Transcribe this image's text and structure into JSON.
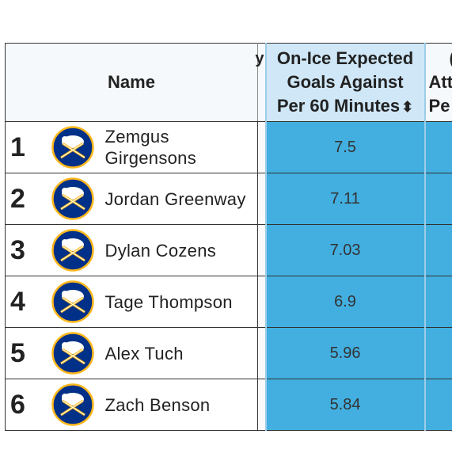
{
  "table": {
    "headers": {
      "name": "Name",
      "gap_partial": "y",
      "metric_line1": "On-Ice Expected",
      "metric_line2": "Goals Against",
      "metric_line3": "Per 60 Minutes",
      "metric_sort_icon": "sort-updown-icon",
      "next_partial_line1": "(",
      "next_partial_line2": "Att",
      "next_partial_line3": "Pe"
    },
    "rows": [
      {
        "rank": "1",
        "name": "Zemgus Girgensons",
        "value": "7.5",
        "logo": "buffalo-sabres-logo"
      },
      {
        "rank": "2",
        "name": "Jordan Greenway",
        "value": "7.11",
        "logo": "buffalo-sabres-logo"
      },
      {
        "rank": "3",
        "name": "Dylan Cozens",
        "value": "7.03",
        "logo": "buffalo-sabres-logo"
      },
      {
        "rank": "4",
        "name": "Tage Thompson",
        "value": "6.9",
        "logo": "buffalo-sabres-logo"
      },
      {
        "rank": "5",
        "name": "Alex Tuch",
        "value": "5.96",
        "logo": "buffalo-sabres-logo"
      },
      {
        "rank": "6",
        "name": "Zach Benson",
        "value": "5.84",
        "logo": "buffalo-sabres-logo"
      }
    ]
  },
  "colors": {
    "highlight_cell": "#42afe0",
    "highlight_header": "#cfe7f7",
    "logo_navy": "#003087",
    "logo_gold": "#FFB81C"
  }
}
